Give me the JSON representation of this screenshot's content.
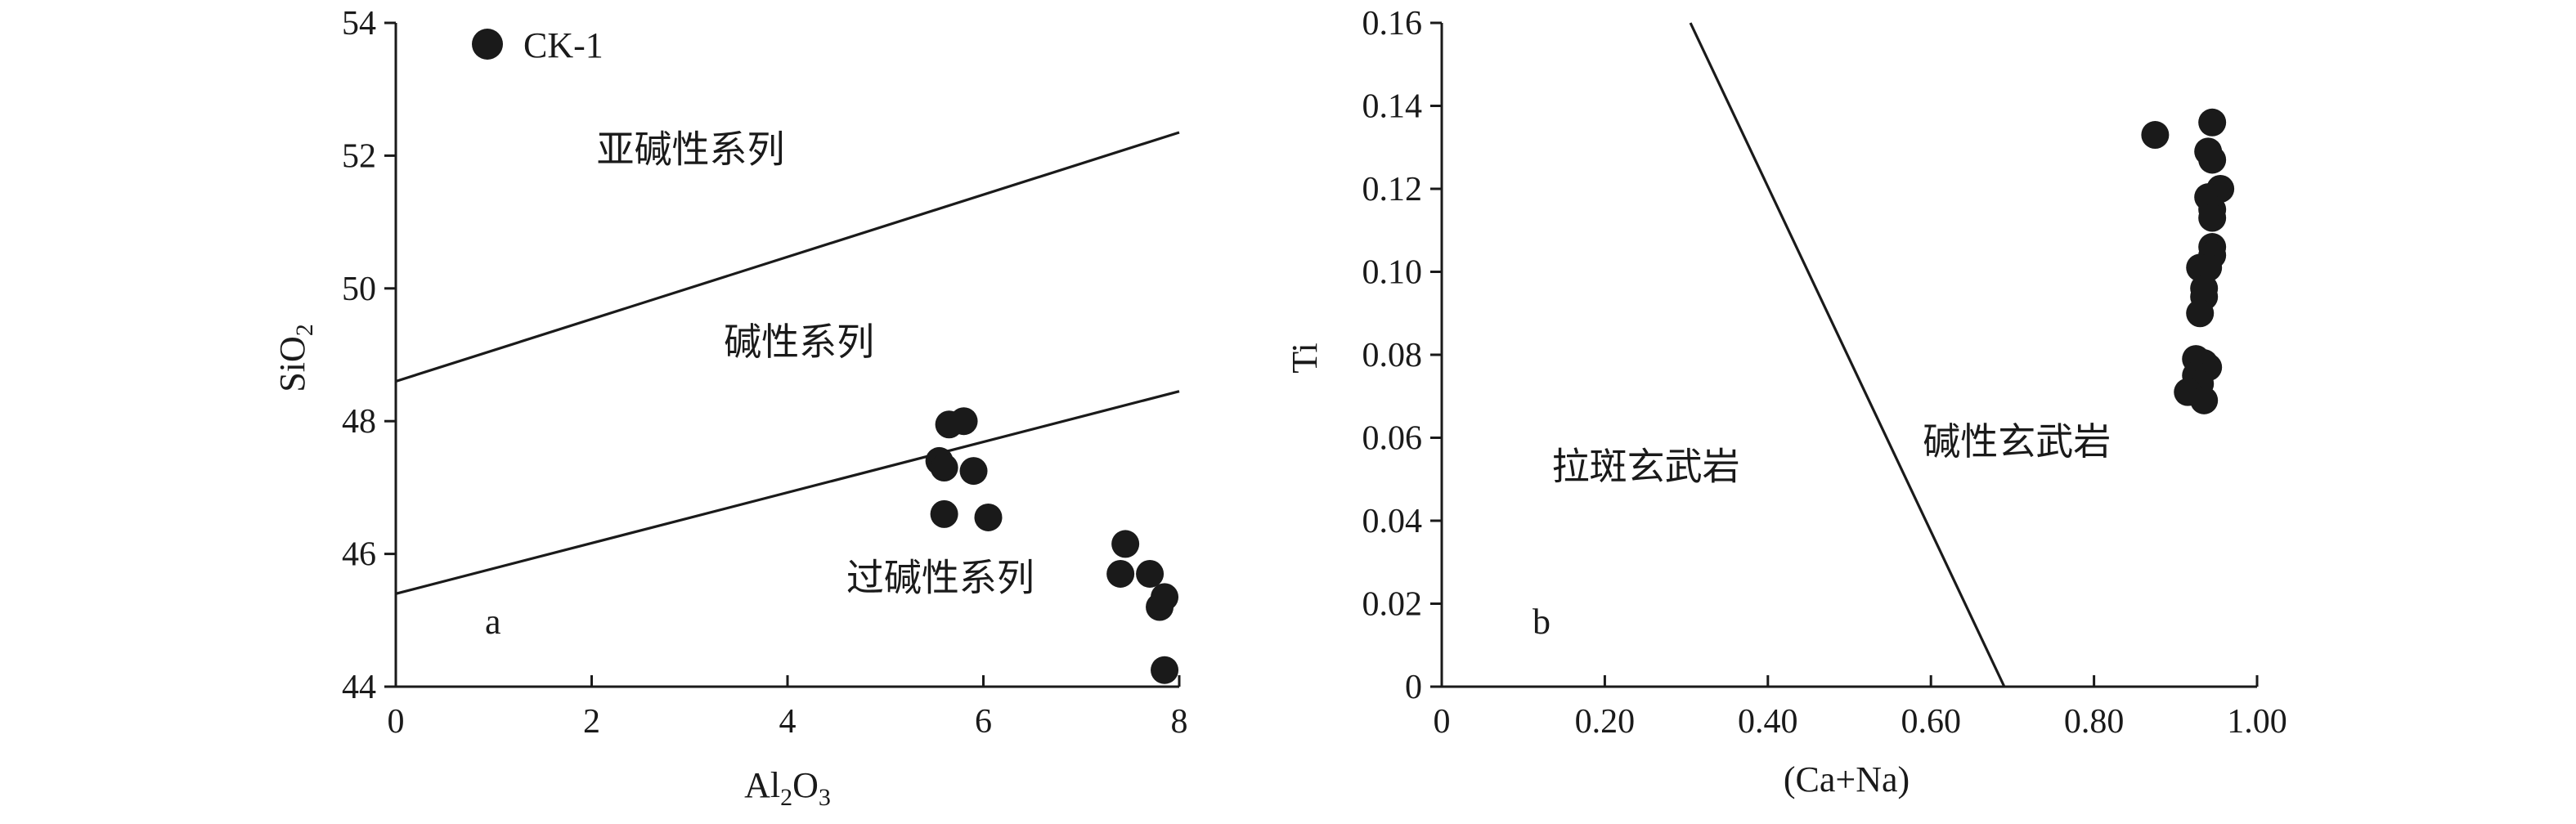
{
  "chart_data": [
    {
      "panel": "a",
      "type": "scatter",
      "xlabel": "Al2O3",
      "ylabel": "SiO2",
      "xlim": [
        0,
        8
      ],
      "ylim": [
        44,
        54
      ],
      "x_ticks": [
        "0",
        "2",
        "4",
        "6",
        "8"
      ],
      "y_ticks": [
        "44",
        "46",
        "48",
        "50",
        "52",
        "54"
      ],
      "legend": {
        "label": "CK-1",
        "placement": "top-left"
      },
      "series": [
        {
          "name": "CK-1",
          "points": [
            [
              5.55,
              47.4
            ],
            [
              5.6,
              47.3
            ],
            [
              5.65,
              47.95
            ],
            [
              5.8,
              48.0
            ],
            [
              5.9,
              47.25
            ],
            [
              5.6,
              46.6
            ],
            [
              6.05,
              46.55
            ],
            [
              7.45,
              46.15
            ],
            [
              7.4,
              45.7
            ],
            [
              7.7,
              45.7
            ],
            [
              7.85,
              45.35
            ],
            [
              7.8,
              45.2
            ],
            [
              7.85,
              44.25
            ]
          ]
        }
      ],
      "boundaries": [
        {
          "x": [
            0,
            8
          ],
          "y": [
            48.6,
            52.35
          ]
        },
        {
          "x": [
            0,
            8
          ],
          "y": [
            45.4,
            48.45
          ]
        }
      ],
      "regions": [
        {
          "label": "亚碱性系列",
          "x": 2.05,
          "y": 51.9
        },
        {
          "label": "碱性系列",
          "x": 3.35,
          "y": 49.0
        },
        {
          "label": "过碱性系列",
          "x": 4.6,
          "y": 45.45
        }
      ]
    },
    {
      "panel": "b",
      "type": "scatter",
      "xlabel": "(Ca+Na)",
      "ylabel": "Ti",
      "xlim": [
        0,
        1.0
      ],
      "ylim": [
        0,
        0.16
      ],
      "x_ticks": [
        "0",
        "0.20",
        "0.40",
        "0.60",
        "0.80",
        "1.00"
      ],
      "y_ticks": [
        "0",
        "0.02",
        "0.04",
        "0.06",
        "0.08",
        "0.10",
        "0.12",
        "0.14",
        "0.16"
      ],
      "series": [
        {
          "name": "CK-1",
          "points": [
            [
              0.875,
              0.133
            ],
            [
              0.945,
              0.136
            ],
            [
              0.94,
              0.129
            ],
            [
              0.945,
              0.127
            ],
            [
              0.955,
              0.12
            ],
            [
              0.94,
              0.118
            ],
            [
              0.945,
              0.115
            ],
            [
              0.945,
              0.113
            ],
            [
              0.945,
              0.106
            ],
            [
              0.945,
              0.104
            ],
            [
              0.93,
              0.101
            ],
            [
              0.94,
              0.101
            ],
            [
              0.935,
              0.096
            ],
            [
              0.935,
              0.094
            ],
            [
              0.93,
              0.09
            ],
            [
              0.925,
              0.079
            ],
            [
              0.935,
              0.078
            ],
            [
              0.94,
              0.077
            ],
            [
              0.925,
              0.075
            ],
            [
              0.93,
              0.073
            ],
            [
              0.915,
              0.071
            ],
            [
              0.935,
              0.069
            ]
          ]
        }
      ],
      "boundaries": [
        {
          "x": [
            0.305,
            0.69
          ],
          "y": [
            0.16,
            0.0
          ]
        }
      ],
      "regions": [
        {
          "label": "拉斑玄武岩",
          "x": 0.135,
          "y": 0.05
        },
        {
          "label": "碱性玄武岩",
          "x": 0.59,
          "y": 0.056
        }
      ]
    }
  ],
  "panels": {
    "a": {
      "tag": "a",
      "xlabel_main": "Al",
      "xlabel_sub1": "2",
      "xlabel_mid": "O",
      "xlabel_sub2": "3",
      "ylabel_main": "SiO",
      "ylabel_sub": "2",
      "legend_label": "CK-1"
    },
    "b": {
      "tag": "b",
      "xlabel": "(Ca+Na)",
      "ylabel": "Ti"
    }
  }
}
